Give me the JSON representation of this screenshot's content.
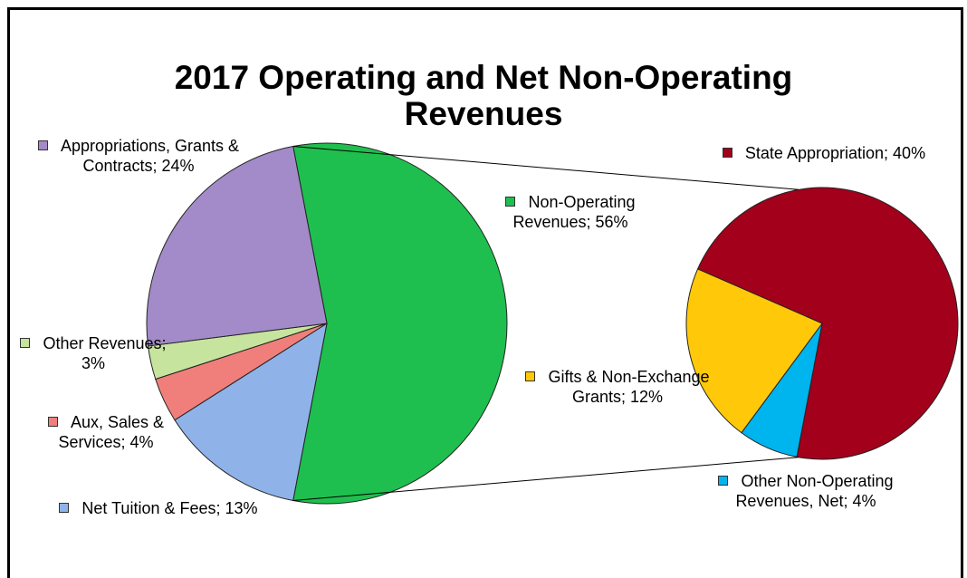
{
  "chart_data": {
    "type": "pie-of-pie",
    "title": "2017 Operating and Net Non-Operating Revenues",
    "separator": ";",
    "categories": [
      "Non-Operating Revenues",
      "Net Tuition & Fees",
      "Aux, Sales & Services",
      "Other Revenues",
      "Appropriations, Grants & Contracts"
    ],
    "values": [
      56,
      13,
      4,
      3,
      24
    ],
    "value_labels": [
      "56%",
      "13%",
      "4%",
      "3%",
      "24%"
    ],
    "colors": [
      "#1fbf4f",
      "#8fb3e8",
      "#f07f7c",
      "#c6e49e",
      "#a38bc9"
    ],
    "secondary": {
      "categories": [
        "State Appropriation",
        "Other Non-Operating Revenues, Net",
        "Gifts & Non-Exchange Grants"
      ],
      "values": [
        40,
        4,
        12
      ],
      "value_labels": [
        "40%",
        "4%",
        "12%"
      ],
      "colors": [
        "#a3001b",
        "#00b4ee",
        "#ffc90a"
      ]
    }
  }
}
